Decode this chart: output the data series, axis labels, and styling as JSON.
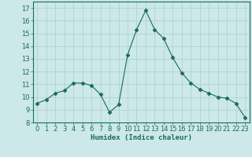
{
  "x": [
    0,
    1,
    2,
    3,
    4,
    5,
    6,
    7,
    8,
    9,
    10,
    11,
    12,
    13,
    14,
    15,
    16,
    17,
    18,
    19,
    20,
    21,
    22,
    23
  ],
  "y": [
    9.5,
    9.8,
    10.3,
    10.5,
    11.1,
    11.1,
    10.9,
    10.2,
    8.8,
    9.4,
    13.3,
    15.3,
    16.8,
    15.3,
    14.6,
    13.1,
    11.9,
    11.1,
    10.6,
    10.3,
    10.0,
    9.9,
    9.5,
    8.4
  ],
  "line_color": "#1a6b5a",
  "marker": "D",
  "marker_size": 2.5,
  "bg_color": "#cce8e8",
  "grid_color": "#aacfcf",
  "xlabel": "Humidex (Indice chaleur)",
  "ylim": [
    8,
    17.5
  ],
  "xlim": [
    -0.5,
    23.5
  ],
  "yticks": [
    8,
    9,
    10,
    11,
    12,
    13,
    14,
    15,
    16,
    17
  ],
  "xticks": [
    0,
    1,
    2,
    3,
    4,
    5,
    6,
    7,
    8,
    9,
    10,
    11,
    12,
    13,
    14,
    15,
    16,
    17,
    18,
    19,
    20,
    21,
    22,
    23
  ],
  "text_color": "#1a6b5a",
  "label_fontsize": 6.5,
  "tick_fontsize": 6.0,
  "spine_color": "#1a6b5a",
  "axis_bg": "#cce8e8"
}
